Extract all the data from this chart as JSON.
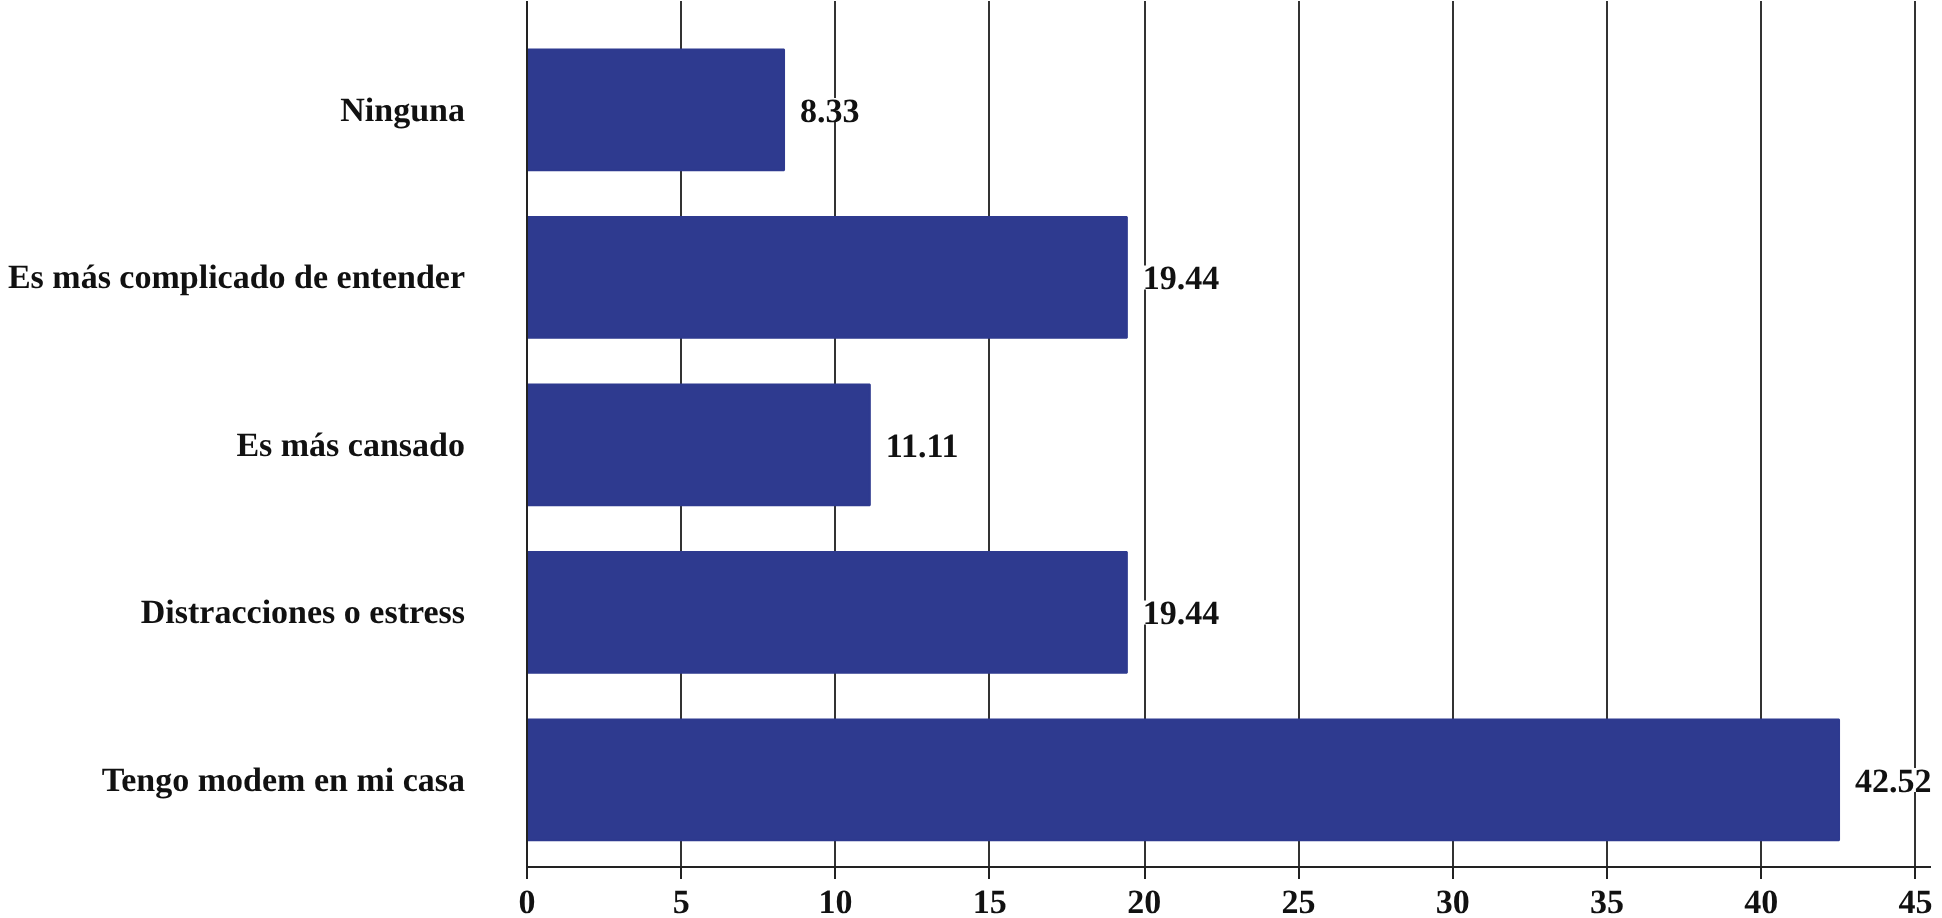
{
  "chart_data": {
    "type": "bar",
    "orientation": "horizontal",
    "categories": [
      "Ninguna",
      "Es más complicado de entender",
      "Es más cansado",
      "Distracciones o estress",
      "Tengo modem en mi casa"
    ],
    "values": [
      8.33,
      19.44,
      11.11,
      19.44,
      42.52
    ],
    "color": "#2e3a8f",
    "data_labels": true,
    "xlim": [
      0,
      45.5
    ],
    "xticks": [
      0,
      5,
      10,
      15,
      20,
      25,
      30,
      35,
      40,
      45
    ],
    "grid": "x"
  }
}
